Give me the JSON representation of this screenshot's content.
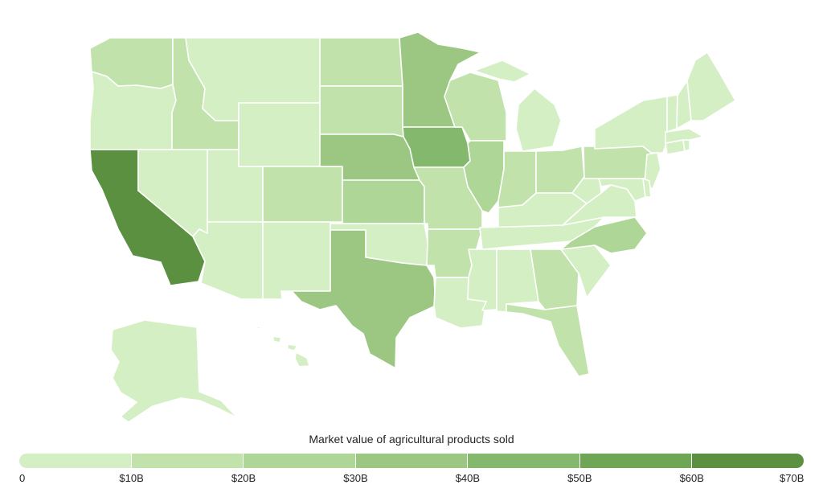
{
  "legend": {
    "title": "Market value of agricultural products sold",
    "ticks": [
      "0",
      "$10B",
      "$20B",
      "$30B",
      "$40B",
      "$50B",
      "$60B",
      "$70B"
    ],
    "bin_colors": [
      "#d5efc4",
      "#c1e2ab",
      "#aed696",
      "#9bc782",
      "#84b86c",
      "#6ea656",
      "#5a9040"
    ]
  },
  "states": [
    {
      "name": "WA",
      "bin": 1
    },
    {
      "name": "OR",
      "bin": 0
    },
    {
      "name": "CA",
      "bin": 6
    },
    {
      "name": "ID",
      "bin": 1
    },
    {
      "name": "NV",
      "bin": 0
    },
    {
      "name": "UT",
      "bin": 0
    },
    {
      "name": "AZ",
      "bin": 0
    },
    {
      "name": "MT",
      "bin": 0
    },
    {
      "name": "WY",
      "bin": 0
    },
    {
      "name": "CO",
      "bin": 1
    },
    {
      "name": "NM",
      "bin": 0
    },
    {
      "name": "ND",
      "bin": 1
    },
    {
      "name": "SD",
      "bin": 1
    },
    {
      "name": "NE",
      "bin": 3
    },
    {
      "name": "KS",
      "bin": 2
    },
    {
      "name": "OK",
      "bin": 0
    },
    {
      "name": "TX",
      "bin": 3
    },
    {
      "name": "MN",
      "bin": 3
    },
    {
      "name": "IA",
      "bin": 4
    },
    {
      "name": "MO",
      "bin": 1
    },
    {
      "name": "AR",
      "bin": 1
    },
    {
      "name": "LA",
      "bin": 0
    },
    {
      "name": "WI",
      "bin": 1
    },
    {
      "name": "IL",
      "bin": 2
    },
    {
      "name": "MI",
      "bin": 0
    },
    {
      "name": "IN",
      "bin": 1
    },
    {
      "name": "OH",
      "bin": 1
    },
    {
      "name": "KY",
      "bin": 0
    },
    {
      "name": "TN",
      "bin": 0
    },
    {
      "name": "MS",
      "bin": 0
    },
    {
      "name": "AL",
      "bin": 0
    },
    {
      "name": "GA",
      "bin": 1
    },
    {
      "name": "FL",
      "bin": 1
    },
    {
      "name": "SC",
      "bin": 0
    },
    {
      "name": "NC",
      "bin": 2
    },
    {
      "name": "VA",
      "bin": 0
    },
    {
      "name": "WV",
      "bin": 0
    },
    {
      "name": "PA",
      "bin": 1
    },
    {
      "name": "NY",
      "bin": 0
    },
    {
      "name": "NJ",
      "bin": 0
    },
    {
      "name": "MD",
      "bin": 0
    },
    {
      "name": "DE",
      "bin": 0
    },
    {
      "name": "CT",
      "bin": 0
    },
    {
      "name": "RI",
      "bin": 0
    },
    {
      "name": "MA",
      "bin": 0
    },
    {
      "name": "VT",
      "bin": 0
    },
    {
      "name": "NH",
      "bin": 0
    },
    {
      "name": "ME",
      "bin": 0
    },
    {
      "name": "AK",
      "bin": 0
    },
    {
      "name": "HI",
      "bin": 0
    }
  ]
}
